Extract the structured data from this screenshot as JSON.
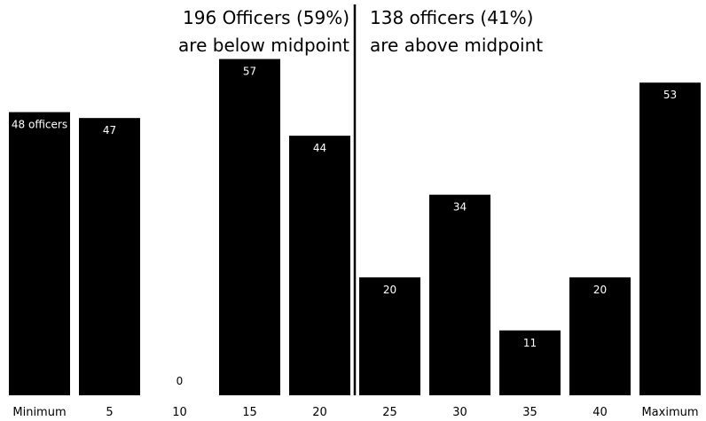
{
  "chart_data": {
    "type": "bar",
    "categories": [
      "Minimum",
      "5",
      "10",
      "15",
      "20",
      "25",
      "30",
      "35",
      "40",
      "Maximum"
    ],
    "values": [
      48,
      47,
      0,
      57,
      44,
      20,
      34,
      11,
      20,
      53
    ],
    "data_labels": [
      "48 officers",
      "47",
      "0",
      "57",
      "44",
      "20",
      "34",
      "11",
      "20",
      "53"
    ],
    "ylim": [
      0,
      64
    ],
    "grid": false,
    "bar_color": "#000000",
    "label_color_inside": "#ffffff",
    "label_color_outside": "#000000",
    "divider_after_category": "20",
    "annotations": {
      "left": [
        "196 Officers (59%)",
        "are below midpoint"
      ],
      "right": [
        "138 officers  (41%)",
        "are above midpoint"
      ]
    }
  }
}
